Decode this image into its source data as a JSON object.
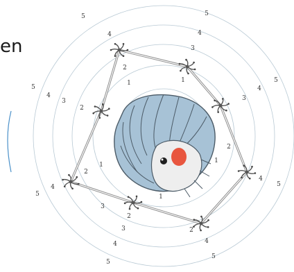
{
  "clipped_text": "en",
  "ring_labels": [
    "1",
    "2",
    "3",
    "4",
    "5"
  ],
  "colors": {
    "ring": "#b8c9d4",
    "creature_body": "#a7c2d6",
    "creature_outline": "#4b5a66",
    "eye_patch": "#e8563f",
    "links": "#8e8e8e",
    "side_arc": "#4a90c9"
  },
  "icons": [
    "creature-illustration",
    "connector-node-icon"
  ]
}
